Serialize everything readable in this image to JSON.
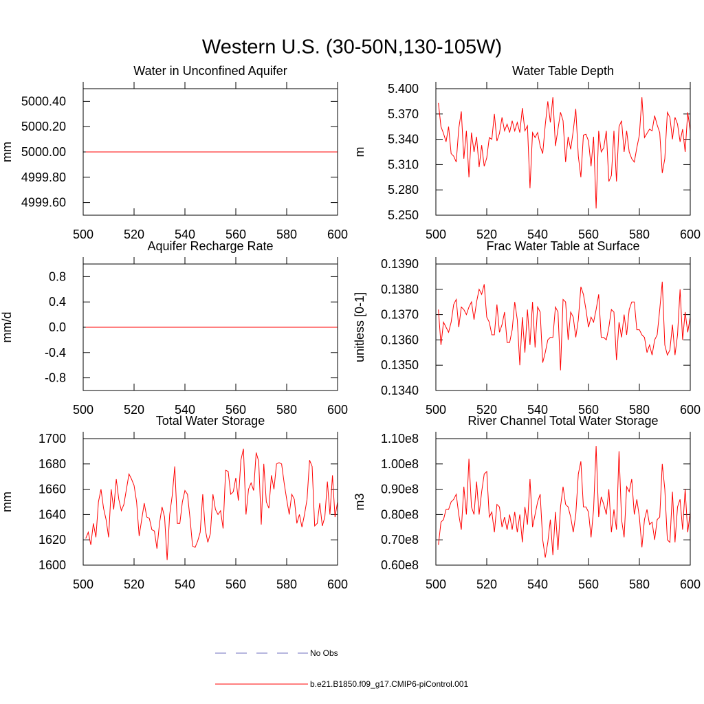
{
  "title": "Western U.S. (30-50N,130-105W)",
  "legend": [
    {
      "name": "No Obs",
      "color": "#6f6fbf",
      "dash": true
    },
    {
      "name": "b.e21.B1850.f09_g17.CMIP6-piControl.001",
      "color": "#ff0000",
      "dash": false
    }
  ],
  "chart_data": [
    {
      "type": "line",
      "title": "Water in Unconfined Aquifer",
      "y_label": "mm",
      "x": [
        501,
        600
      ],
      "series": [
        {
          "color": "#ff0000",
          "values": [
            5000,
            5000
          ]
        }
      ],
      "xlim": [
        500,
        600
      ],
      "xticks": [
        500,
        520,
        540,
        560,
        580,
        600
      ],
      "ylim": [
        4999.5,
        5000.5
      ],
      "yticks": [
        {
          "value": 4999.6,
          "label": "4999.60"
        },
        {
          "value": 4999.8,
          "label": "4999.80"
        },
        {
          "value": 5000,
          "label": "5000.00"
        },
        {
          "value": 5000.2,
          "label": "5000.20"
        },
        {
          "value": 5000.4,
          "label": "5000.40"
        }
      ]
    },
    {
      "type": "line",
      "title": "Water Table Depth",
      "y_label": "m",
      "x": [
        501,
        502,
        503,
        504,
        505,
        506,
        507,
        508,
        509,
        510,
        511,
        512,
        513,
        514,
        515,
        516,
        517,
        518,
        519,
        520,
        521,
        522,
        523,
        524,
        525,
        526,
        527,
        528,
        529,
        530,
        531,
        532,
        533,
        534,
        535,
        536,
        537,
        538,
        539,
        540,
        541,
        542,
        543,
        544,
        545,
        546,
        547,
        548,
        549,
        550,
        551,
        552,
        553,
        554,
        555,
        556,
        557,
        558,
        559,
        560,
        561,
        562,
        563,
        564,
        565,
        566,
        567,
        568,
        569,
        570,
        571,
        572,
        573,
        574,
        575,
        576,
        577,
        578,
        579,
        580,
        581,
        582,
        583,
        584,
        585,
        586,
        587,
        588,
        589,
        590,
        591,
        592,
        593,
        594,
        595,
        596,
        597,
        598,
        599,
        600
      ],
      "series": [
        {
          "color": "#ff0000",
          "values": [
            5.383,
            5.355,
            5.347,
            5.337,
            5.355,
            5.323,
            5.32,
            5.313,
            5.353,
            5.373,
            5.317,
            5.35,
            5.295,
            5.348,
            5.325,
            5.343,
            5.307,
            5.333,
            5.308,
            5.318,
            5.342,
            5.34,
            5.37,
            5.338,
            5.347,
            5.366,
            5.35,
            5.358,
            5.348,
            5.362,
            5.35,
            5.36,
            5.348,
            5.377,
            5.35,
            5.356,
            5.282,
            5.348,
            5.342,
            5.348,
            5.332,
            5.323,
            5.357,
            5.385,
            5.36,
            5.39,
            5.332,
            5.352,
            5.372,
            5.362,
            5.313,
            5.343,
            5.328,
            5.35,
            5.376,
            5.32,
            5.295,
            5.345,
            5.346,
            5.338,
            5.308,
            5.343,
            5.258,
            5.35,
            5.325,
            5.33,
            5.35,
            5.29,
            5.297,
            5.35,
            5.29,
            5.355,
            5.362,
            5.325,
            5.35,
            5.325,
            5.317,
            5.313,
            5.33,
            5.345,
            5.39,
            5.342,
            5.347,
            5.352,
            5.35,
            5.368,
            5.357,
            5.348,
            5.3,
            5.317,
            5.372,
            5.366,
            5.34,
            5.366,
            5.358,
            5.337,
            5.352,
            5.325,
            5.372,
            5.35
          ]
        }
      ],
      "xlim": [
        500,
        600
      ],
      "xticks": [
        500,
        520,
        540,
        560,
        580,
        600
      ],
      "ylim": [
        5.25,
        5.4
      ],
      "yticks": [
        {
          "value": 5.25,
          "label": "5.250"
        },
        {
          "value": 5.28,
          "label": "5.280"
        },
        {
          "value": 5.31,
          "label": "5.310"
        },
        {
          "value": 5.34,
          "label": "5.340"
        },
        {
          "value": 5.37,
          "label": "5.370"
        },
        {
          "value": 5.4,
          "label": "5.400"
        }
      ]
    },
    {
      "type": "line",
      "title": "Aquifer Recharge Rate",
      "y_label": "mm/d",
      "x": [
        501,
        600
      ],
      "series": [
        {
          "color": "#ff0000",
          "values": [
            0,
            0
          ]
        }
      ],
      "xlim": [
        500,
        600
      ],
      "xticks": [
        500,
        520,
        540,
        560,
        580,
        600
      ],
      "ylim": [
        -1,
        1
      ],
      "yticks": [
        -0.8,
        -0.4,
        {
          "value": 0,
          "label": "0.0"
        },
        0.4,
        0.8
      ]
    },
    {
      "type": "line",
      "title": "Frac Water Table at Surface",
      "y_label": "unitless [0-1]",
      "x": [
        501,
        502,
        503,
        504,
        505,
        506,
        507,
        508,
        509,
        510,
        511,
        512,
        513,
        514,
        515,
        516,
        517,
        518,
        519,
        520,
        521,
        522,
        523,
        524,
        525,
        526,
        527,
        528,
        529,
        530,
        531,
        532,
        533,
        534,
        535,
        536,
        537,
        538,
        539,
        540,
        541,
        542,
        543,
        544,
        545,
        546,
        547,
        548,
        549,
        550,
        551,
        552,
        553,
        554,
        555,
        556,
        557,
        558,
        559,
        560,
        561,
        562,
        563,
        564,
        565,
        566,
        567,
        568,
        569,
        570,
        571,
        572,
        573,
        574,
        575,
        576,
        577,
        578,
        579,
        580,
        581,
        582,
        583,
        584,
        585,
        586,
        587,
        588,
        589,
        590,
        591,
        592,
        593,
        594,
        595,
        596,
        597,
        598,
        599,
        600
      ],
      "series": [
        {
          "color": "#ff0000",
          "values": [
            0.1372,
            0.1358,
            0.1367,
            0.1365,
            0.1363,
            0.1367,
            0.1374,
            0.1376,
            0.1365,
            0.1373,
            0.1372,
            0.137,
            0.1373,
            0.1375,
            0.1368,
            0.1375,
            0.138,
            0.1378,
            0.1382,
            0.1369,
            0.1367,
            0.1362,
            0.1362,
            0.1374,
            0.1363,
            0.1366,
            0.1371,
            0.1359,
            0.1359,
            0.1364,
            0.1375,
            0.1368,
            0.135,
            0.1369,
            0.1355,
            0.1372,
            0.1358,
            0.1375,
            0.1357,
            0.1373,
            0.1371,
            0.1351,
            0.1355,
            0.136,
            0.1361,
            0.1361,
            0.1373,
            0.1371,
            0.1348,
            0.1376,
            0.1375,
            0.136,
            0.1371,
            0.1369,
            0.1361,
            0.1368,
            0.1381,
            0.1378,
            0.1372,
            0.1365,
            0.1369,
            0.1367,
            0.1372,
            0.1378,
            0.1361,
            0.1361,
            0.136,
            0.1365,
            0.1372,
            0.1371,
            0.1352,
            0.1367,
            0.1361,
            0.137,
            0.1362,
            0.1372,
            0.1375,
            0.1375,
            0.1364,
            0.1364,
            0.1362,
            0.1361,
            0.1355,
            0.1358,
            0.1354,
            0.136,
            0.1362,
            0.1372,
            0.1383,
            0.1358,
            0.1354,
            0.1356,
            0.1366,
            0.1354,
            0.1362,
            0.138,
            0.136,
            0.1371,
            0.1363,
            0.1369
          ]
        }
      ],
      "xlim": [
        500,
        600
      ],
      "xticks": [
        500,
        520,
        540,
        560,
        580,
        600
      ],
      "ylim": [
        0.134,
        0.139
      ],
      "yticks": [
        {
          "value": 0.134,
          "label": "0.1340"
        },
        {
          "value": 0.135,
          "label": "0.1350"
        },
        {
          "value": 0.136,
          "label": "0.1360"
        },
        {
          "value": 0.137,
          "label": "0.1370"
        },
        {
          "value": 0.138,
          "label": "0.1380"
        },
        {
          "value": 0.139,
          "label": "0.1390"
        }
      ]
    },
    {
      "type": "line",
      "title": "Total Water Storage",
      "y_label": "mm",
      "x": [
        501,
        502,
        503,
        504,
        505,
        506,
        507,
        508,
        509,
        510,
        511,
        512,
        513,
        514,
        515,
        516,
        517,
        518,
        519,
        520,
        521,
        522,
        523,
        524,
        525,
        526,
        527,
        528,
        529,
        530,
        531,
        532,
        533,
        534,
        535,
        536,
        537,
        538,
        539,
        540,
        541,
        542,
        543,
        544,
        545,
        546,
        547,
        548,
        549,
        550,
        551,
        552,
        553,
        554,
        555,
        556,
        557,
        558,
        559,
        560,
        561,
        562,
        563,
        564,
        565,
        566,
        567,
        568,
        569,
        570,
        571,
        572,
        573,
        574,
        575,
        576,
        577,
        578,
        579,
        580,
        581,
        582,
        583,
        584,
        585,
        586,
        587,
        588,
        589,
        590,
        591,
        592,
        593,
        594,
        595,
        596,
        597,
        598,
        599,
        600
      ],
      "series": [
        {
          "color": "#ff0000",
          "values": [
            1621,
            1626,
            1616,
            1633,
            1622,
            1650,
            1660,
            1645,
            1636,
            1622,
            1660,
            1644,
            1668,
            1652,
            1643,
            1648,
            1660,
            1672,
            1668,
            1663,
            1650,
            1623,
            1636,
            1649,
            1638,
            1637,
            1628,
            1627,
            1613,
            1633,
            1646,
            1638,
            1604,
            1640,
            1655,
            1678,
            1633,
            1633,
            1650,
            1659,
            1656,
            1637,
            1615,
            1614,
            1619,
            1626,
            1656,
            1628,
            1618,
            1625,
            1656,
            1644,
            1640,
            1643,
            1629,
            1675,
            1674,
            1656,
            1658,
            1669,
            1651,
            1683,
            1692,
            1640,
            1660,
            1665,
            1659,
            1689,
            1682,
            1632,
            1680,
            1650,
            1645,
            1671,
            1660,
            1680,
            1681,
            1680,
            1665,
            1652,
            1640,
            1656,
            1652,
            1633,
            1640,
            1630,
            1640,
            1652,
            1683,
            1678,
            1631,
            1633,
            1649,
            1631,
            1638,
            1666,
            1640,
            1671,
            1638,
            1650
          ]
        }
      ],
      "xlim": [
        500,
        600
      ],
      "xticks": [
        500,
        520,
        540,
        560,
        580,
        600
      ],
      "ylim": [
        1600,
        1700
      ],
      "yticks": [
        1600,
        1620,
        1640,
        1660,
        1680,
        1700
      ]
    },
    {
      "type": "line",
      "title": "River Channel Total Water Storage",
      "y_label": "m3",
      "x": [
        501,
        502,
        503,
        504,
        505,
        506,
        507,
        508,
        509,
        510,
        511,
        512,
        513,
        514,
        515,
        516,
        517,
        518,
        519,
        520,
        521,
        522,
        523,
        524,
        525,
        526,
        527,
        528,
        529,
        530,
        531,
        532,
        533,
        534,
        535,
        536,
        537,
        538,
        539,
        540,
        541,
        542,
        543,
        544,
        545,
        546,
        547,
        548,
        549,
        550,
        551,
        552,
        553,
        554,
        555,
        556,
        557,
        558,
        559,
        560,
        561,
        562,
        563,
        564,
        565,
        566,
        567,
        568,
        569,
        570,
        571,
        572,
        573,
        574,
        575,
        576,
        577,
        578,
        579,
        580,
        581,
        582,
        583,
        584,
        585,
        586,
        587,
        588,
        589,
        590,
        591,
        592,
        593,
        594,
        595,
        596,
        597,
        598,
        599,
        600
      ],
      "series": [
        {
          "color": "#ff0000",
          "values": [
            68000000,
            77000000,
            78000000,
            82000000,
            82000000,
            85000000,
            86000000,
            88000000,
            80000000,
            74000000,
            91000000,
            80000000,
            102000000,
            83000000,
            80000000,
            93000000,
            80000000,
            89000000,
            96000000,
            97000000,
            79000000,
            81000000,
            73000000,
            84000000,
            83000000,
            75000000,
            79000000,
            74000000,
            80000000,
            74000000,
            81000000,
            73000000,
            80000000,
            69000000,
            83000000,
            76000000,
            94000000,
            75000000,
            80000000,
            85000000,
            88000000,
            70000000,
            63000000,
            69000000,
            78000000,
            64000000,
            81000000,
            66000000,
            83000000,
            91000000,
            84000000,
            83000000,
            79000000,
            73000000,
            80000000,
            96000000,
            101000000,
            83000000,
            83000000,
            81000000,
            71000000,
            82000000,
            107000000,
            79000000,
            87000000,
            84000000,
            80000000,
            90000000,
            73000000,
            82000000,
            74000000,
            105000000,
            78000000,
            71000000,
            91000000,
            89000000,
            94000000,
            80000000,
            86000000,
            79000000,
            67000000,
            78000000,
            82000000,
            76000000,
            77000000,
            70000000,
            78000000,
            79000000,
            100000000,
            90000000,
            70000000,
            69000000,
            89000000,
            69000000,
            83000000,
            86000000,
            74000000,
            90000000,
            73000000,
            81000000
          ]
        }
      ],
      "xlim": [
        500,
        600
      ],
      "xticks": [
        500,
        520,
        540,
        560,
        580,
        600
      ],
      "ylim": [
        60000000,
        110000000
      ],
      "yticks": [
        {
          "value": 60000000,
          "label": "0.60e8"
        },
        {
          "value": 70000000,
          "label": "0.70e8"
        },
        {
          "value": 80000000,
          "label": "0.80e8"
        },
        {
          "value": 90000000,
          "label": "0.90e8"
        },
        {
          "value": 100000000,
          "label": "1.00e8"
        },
        {
          "value": 110000000,
          "label": "1.10e8"
        }
      ]
    }
  ]
}
